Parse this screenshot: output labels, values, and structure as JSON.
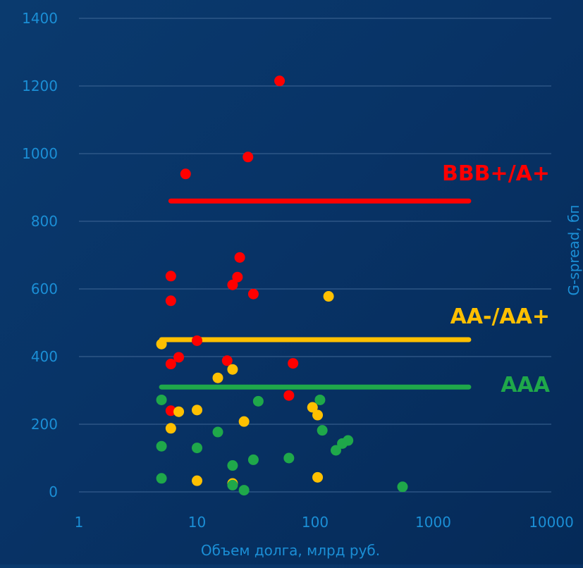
{
  "chart_data": {
    "type": "scatter",
    "xlabel": "Объем долга, млрд руб.",
    "ylabel": "G-spread, бп",
    "x_scale": "log",
    "xlim": [
      1,
      10000
    ],
    "ylim": [
      0,
      1400
    ],
    "x_ticks": [
      1,
      10,
      100,
      1000,
      10000
    ],
    "x_tick_labels": [
      "1",
      "10",
      "100",
      "1000",
      "10000"
    ],
    "y_ticks": [
      0,
      200,
      400,
      600,
      800,
      1000,
      1200,
      1400
    ],
    "y_tick_labels": [
      "0",
      "200",
      "400",
      "600",
      "800",
      "1000",
      "1200",
      "1400"
    ],
    "grid": "horizontal",
    "colors": {
      "background": "#083366",
      "axis_text": "#1b8fd6",
      "grid": "#3f6796",
      "bbb": "#ff0000",
      "aa": "#ffc000",
      "aaa": "#1fa84a"
    },
    "series": [
      {
        "key": "bbb",
        "color": "#ff0000",
        "points": [
          [
            50,
            1215
          ],
          [
            27,
            990
          ],
          [
            8,
            940
          ],
          [
            23,
            693
          ],
          [
            6,
            638
          ],
          [
            22,
            635
          ],
          [
            20,
            612
          ],
          [
            30,
            585
          ],
          [
            6,
            565
          ],
          [
            10,
            447
          ],
          [
            7,
            398
          ],
          [
            18,
            388
          ],
          [
            65,
            380
          ],
          [
            6,
            378
          ],
          [
            60,
            285
          ],
          [
            6,
            240
          ]
        ]
      },
      {
        "key": "aa",
        "color": "#ffc000",
        "points": [
          [
            130,
            578
          ],
          [
            5,
            437
          ],
          [
            20,
            362
          ],
          [
            15,
            337
          ],
          [
            95,
            250
          ],
          [
            7,
            237
          ],
          [
            10,
            242
          ],
          [
            105,
            227
          ],
          [
            25,
            208
          ],
          [
            6,
            188
          ],
          [
            105,
            43
          ],
          [
            10,
            33
          ],
          [
            20,
            25
          ]
        ]
      },
      {
        "key": "aaa",
        "color": "#1fa84a",
        "points": [
          [
            5,
            272
          ],
          [
            33,
            268
          ],
          [
            110,
            272
          ],
          [
            115,
            182
          ],
          [
            15,
            177
          ],
          [
            190,
            152
          ],
          [
            170,
            143
          ],
          [
            150,
            123
          ],
          [
            5,
            135
          ],
          [
            10,
            130
          ],
          [
            60,
            100
          ],
          [
            30,
            95
          ],
          [
            20,
            78
          ],
          [
            5,
            40
          ],
          [
            550,
            15
          ],
          [
            20,
            20
          ],
          [
            25,
            5
          ]
        ]
      }
    ],
    "reference_lines": [
      {
        "key": "bbb",
        "label": "BBB+/A+",
        "y": 860,
        "x_from": 6,
        "x_to": 2000,
        "color": "#ff0000"
      },
      {
        "key": "aa",
        "label": "AA-/AA+",
        "y": 450,
        "x_from": 5,
        "x_to": 2000,
        "color": "#ffc000"
      },
      {
        "key": "aaa",
        "label": "AAA",
        "y": 310,
        "x_from": 5,
        "x_to": 2000,
        "color": "#1fa84a"
      }
    ]
  }
}
